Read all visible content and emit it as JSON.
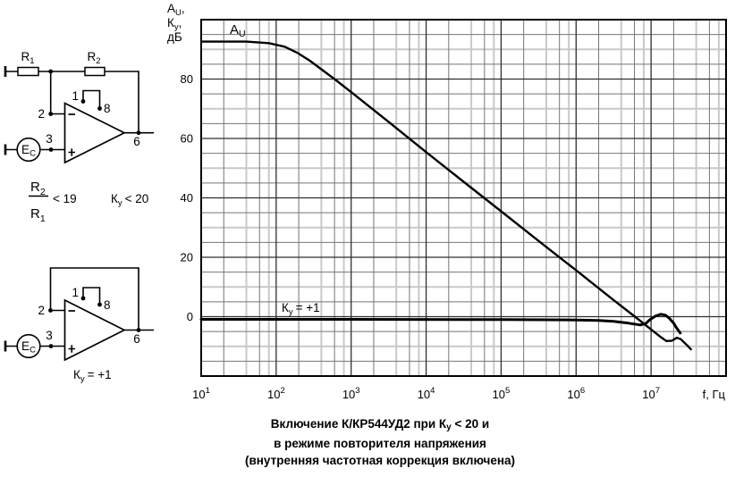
{
  "chart": {
    "au_label": {
      "m": "A",
      "s": "U"
    },
    "ky_label": {
      "m": "К",
      "s": "у",
      "r": "= +1"
    },
    "y_header": {
      "l1": {
        "m": "A",
        "s": "U",
        "c": ","
      },
      "l2": {
        "m": "К",
        "s": "у",
        "c": ","
      },
      "l3": "дБ"
    }
  },
  "chart_data": {
    "type": "line",
    "title": "Включение К/КР544УД2 при Ку < 20 и в режиме повторителя напряжения (внутренняя частотная коррекция включена)",
    "xlabel": "f, Гц",
    "ylabel": "AU, Ку, дБ",
    "x_axis": {
      "scale": "log",
      "min": 10,
      "max": 100000000,
      "unit": "f, Гц",
      "minor_multiples": [
        2,
        4,
        6,
        8
      ],
      "ticks": [
        {
          "f": 10,
          "base": "10",
          "exp": "1"
        },
        {
          "f": 100,
          "base": "10",
          "exp": "2"
        },
        {
          "f": 1000,
          "base": "10",
          "exp": "3"
        },
        {
          "f": 10000,
          "base": "10",
          "exp": "4"
        },
        {
          "f": 100000,
          "base": "10",
          "exp": "5"
        },
        {
          "f": 1000000,
          "base": "10",
          "exp": "6"
        },
        {
          "f": 10000000,
          "base": "10",
          "exp": "7"
        }
      ]
    },
    "y_axis": {
      "min": -20,
      "max": 100,
      "major_step": 20,
      "minor_step": 5,
      "ticks": [
        {
          "v": 80,
          "label": "80"
        },
        {
          "v": 60,
          "label": "60"
        },
        {
          "v": 40,
          "label": "40"
        },
        {
          "v": 20,
          "label": "20"
        },
        {
          "v": 0,
          "label": "0"
        }
      ]
    },
    "series": [
      {
        "name": "au-open-loop",
        "label": "AU",
        "stroke_width": 2.4,
        "points": [
          [
            10,
            92.6
          ],
          [
            40,
            92.6
          ],
          [
            80,
            92.1
          ],
          [
            130,
            90.9
          ],
          [
            190,
            88.9
          ],
          [
            280,
            86.2
          ],
          [
            430,
            82.7
          ],
          [
            615,
            79.8
          ],
          [
            1000,
            75.6
          ],
          [
            3160,
            65.6
          ],
          [
            10000,
            55.4
          ],
          [
            31600,
            45.4
          ],
          [
            100000,
            35.5
          ],
          [
            316000,
            25.5
          ],
          [
            1000000,
            15.6
          ],
          [
            3160000,
            5.6
          ],
          [
            6100000,
            0
          ],
          [
            10000000,
            -4.3
          ],
          [
            13500000,
            -6.9
          ],
          [
            16000000,
            -8.2
          ],
          [
            19000000,
            -8.1
          ],
          [
            22000000,
            -7.1
          ],
          [
            25000000,
            -7.6
          ],
          [
            28000000,
            -8.8
          ],
          [
            31000000,
            -9.9
          ],
          [
            34000000,
            -11
          ]
        ]
      },
      {
        "name": "ky-follower",
        "label": "Ку = +1",
        "stroke_width": 3,
        "points": [
          [
            10,
            -0.9
          ],
          [
            1000,
            -0.9
          ],
          [
            100000,
            -1.0
          ],
          [
            1000000,
            -1.1
          ],
          [
            2000000,
            -1.3
          ],
          [
            3160000,
            -1.6
          ],
          [
            5000000,
            -2.2
          ],
          [
            7200000,
            -2.8
          ],
          [
            8500000,
            -2.3
          ],
          [
            9700000,
            -1.0
          ],
          [
            11500000,
            0.2
          ],
          [
            13500000,
            0.8
          ],
          [
            15500000,
            0.5
          ],
          [
            17500000,
            -0.5
          ],
          [
            20000000,
            -2.2
          ],
          [
            22000000,
            -3.9
          ],
          [
            24500000,
            -5.5
          ]
        ]
      }
    ],
    "style": {
      "curve_color": "#000000",
      "grid_major": "#2f2f2f",
      "grid_mid": "#757575",
      "grid_light": "#c9c9c9"
    }
  },
  "circuit1": {
    "r1": {
      "m": "R",
      "s": "1"
    },
    "r2": {
      "m": "R",
      "s": "2"
    },
    "pin_inv": "2",
    "pin_non": "3",
    "pin_out": "6",
    "pin_c1": "1",
    "pin_c8": "8",
    "source": {
      "m": "E",
      "s": "C"
    },
    "frac_num": {
      "m": "R",
      "s": "2"
    },
    "frac_den": {
      "m": "R",
      "s": "1"
    },
    "frac_cmp": "< 19",
    "gain": {
      "m": "К",
      "s": "у",
      "r": "< 20"
    }
  },
  "circuit2": {
    "pin_inv": "2",
    "pin_non": "3",
    "pin_out": "6",
    "pin_c1": "1",
    "pin_c8": "8",
    "source": {
      "m": "E",
      "s": "C"
    },
    "gain": {
      "m": "К",
      "s": "у",
      "r": "= +1"
    }
  },
  "caption": {
    "pre": "Включение К/КР544УД2 при ",
    "k": "К",
    "ksub": "у",
    "post": " < 20 и",
    "line2": "в режиме повторителя напряжения",
    "line3": "(внутренняя частотная коррекция включена)"
  }
}
